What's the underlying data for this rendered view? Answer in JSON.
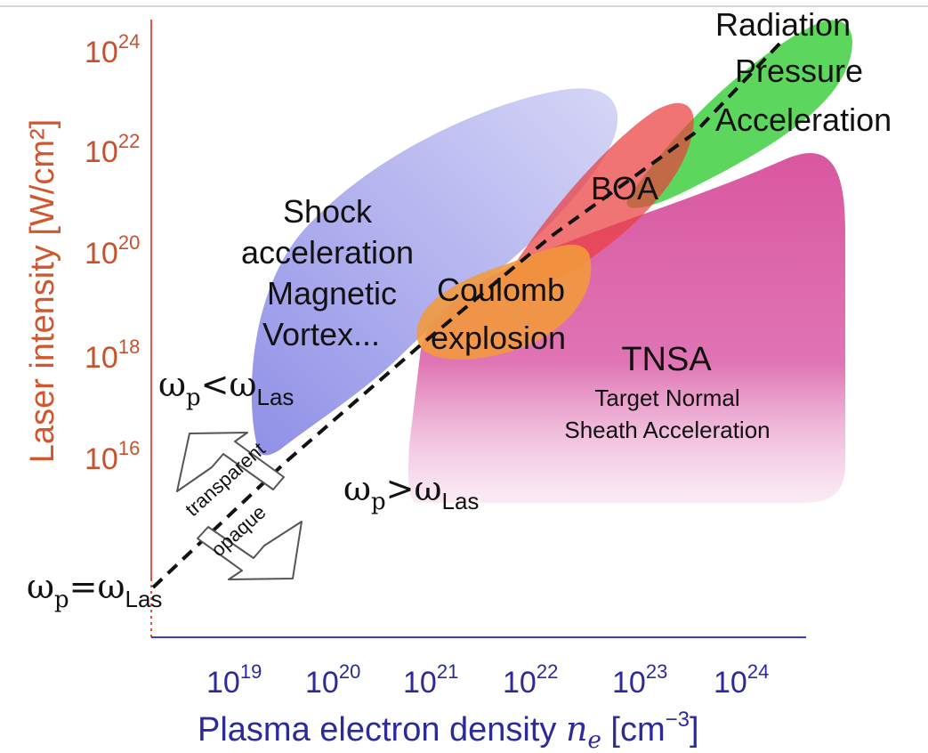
{
  "axes": {
    "y_title": "Laser intensity [W/cm²]",
    "x_title_prefix": "Plasma electron density ",
    "x_title_var": "n",
    "x_title_sub": "e",
    "x_title_units_open": " [cm",
    "x_title_units_exp": "−3",
    "x_title_units_close": "]",
    "y_ticks": [
      {
        "base": "10",
        "exp": "24"
      },
      {
        "base": "10",
        "exp": "22"
      },
      {
        "base": "10",
        "exp": "20"
      },
      {
        "base": "10",
        "exp": "18"
      },
      {
        "base": "10",
        "exp": "16"
      }
    ],
    "x_ticks": [
      {
        "base": "10",
        "exp": "19"
      },
      {
        "base": "10",
        "exp": "20"
      },
      {
        "base": "10",
        "exp": "21"
      },
      {
        "base": "10",
        "exp": "22"
      },
      {
        "base": "10",
        "exp": "23"
      },
      {
        "base": "10",
        "exp": "24"
      }
    ]
  },
  "regions": {
    "shock": {
      "lines": [
        "Shock",
        "acceleration",
        "Magnetic",
        "Vortex..."
      ],
      "color": "#8a8ae6"
    },
    "rpa": {
      "lines": [
        "Radiation",
        "Pressure",
        "Acceleration"
      ],
      "color": "#4fd04f"
    },
    "boa": {
      "label": "BOA",
      "color": "#e84c4c"
    },
    "coulomb": {
      "lines": [
        "Coulomb",
        "explosion"
      ],
      "color": "#f39a3a"
    },
    "tnsa": {
      "label": "TNSA",
      "sub_lines": [
        "Target Normal",
        "Sheath Acceleration"
      ],
      "color": "#d9579f"
    }
  },
  "annotations": {
    "lt": {
      "omega": "ω",
      "sub_p": "p",
      "op": "<",
      "sub_las": "Las"
    },
    "gt": {
      "omega": "ω",
      "sub_p": "p",
      "op": ">",
      "sub_las": "Las"
    },
    "eq": {
      "omega": "ω",
      "sub_p": "p",
      "op": "=",
      "sub_las": "Las"
    },
    "transparent": "transparent",
    "opaque": "opaque"
  }
}
